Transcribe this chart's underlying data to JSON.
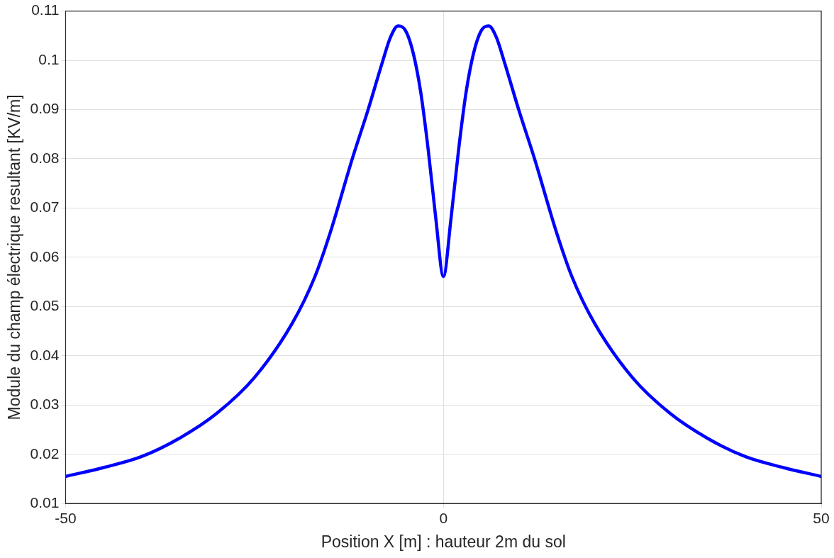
{
  "chart_data": {
    "type": "line",
    "xlabel": "Position X [m] : hauteur 2m du sol",
    "ylabel": "Module du champ électrique resultant [KV/m]",
    "series": [
      {
        "color": "#0000ff",
        "x": [
          -50,
          -45,
          -40,
          -35,
          -30,
          -25,
          -20,
          -17,
          -15,
          -12,
          -10,
          -8,
          -7,
          -6,
          -5,
          -4,
          -3,
          -2,
          -1,
          0,
          1,
          2,
          3,
          4,
          5,
          6,
          7,
          8,
          10,
          12,
          15,
          17,
          20,
          25,
          30,
          35,
          40,
          45,
          50
        ],
        "values": [
          0.0155,
          0.0173,
          0.0195,
          0.0232,
          0.0283,
          0.0356,
          0.0466,
          0.0561,
          0.0649,
          0.0803,
          0.0898,
          0.1,
          0.1047,
          0.107,
          0.106,
          0.1015,
          0.0935,
          0.0817,
          0.0678,
          0.0561,
          0.0678,
          0.0817,
          0.0935,
          0.1015,
          0.106,
          0.107,
          0.1047,
          0.1,
          0.0898,
          0.0803,
          0.0649,
          0.0561,
          0.0466,
          0.0356,
          0.0283,
          0.0232,
          0.0195,
          0.0173,
          0.0155
        ]
      }
    ],
    "xlim": [
      -50,
      50
    ],
    "xticks": [
      -50,
      0,
      50
    ],
    "ylim": [
      0.01,
      0.11
    ],
    "yticks": [
      0.01,
      0.02,
      0.03,
      0.04,
      0.05,
      0.06,
      0.07,
      0.08,
      0.09,
      0.1,
      0.11
    ],
    "grid": true,
    "legend": false,
    "marker": "none",
    "line_style": "solid"
  }
}
